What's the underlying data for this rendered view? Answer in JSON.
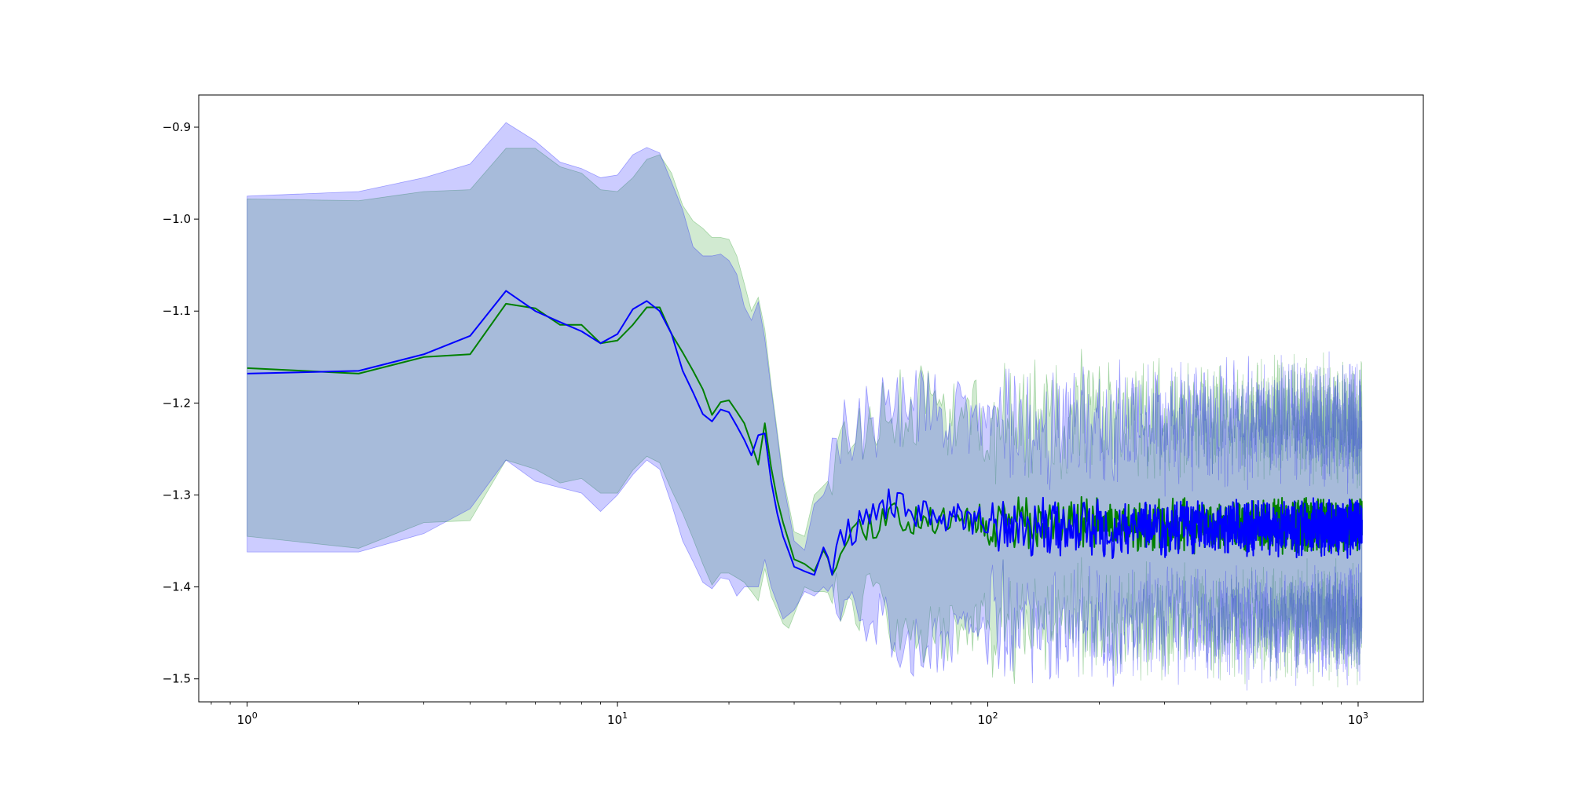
{
  "chart_data": {
    "type": "line",
    "title": "",
    "xlabel": "",
    "ylabel": "",
    "x_scale": "log",
    "xlim": [
      0.74,
      1500
    ],
    "ylim": [
      -1.525,
      -0.865
    ],
    "x_ticks": [
      {
        "value": 1,
        "base": "10",
        "exp": "0"
      },
      {
        "value": 10,
        "base": "10",
        "exp": "1"
      },
      {
        "value": 100,
        "base": "10",
        "exp": "2"
      },
      {
        "value": 1000,
        "base": "10",
        "exp": "3"
      }
    ],
    "y_ticks": [
      {
        "value": -0.9,
        "label": "−0.9"
      },
      {
        "value": -1.0,
        "label": "−1.0"
      },
      {
        "value": -1.1,
        "label": "−1.1"
      },
      {
        "value": -1.2,
        "label": "−1.2"
      },
      {
        "value": -1.3,
        "label": "−1.3"
      },
      {
        "value": -1.4,
        "label": "−1.4"
      },
      {
        "value": -1.5,
        "label": "−1.5"
      }
    ],
    "grid": false,
    "legend": "none",
    "x_max": 1024,
    "series": [
      {
        "color": "#008000",
        "band_color": "#2ca02c",
        "band_opacity": 0.22,
        "mean": [
          [
            1,
            -1.162
          ],
          [
            2,
            -1.168
          ],
          [
            3,
            -1.15
          ],
          [
            4,
            -1.147
          ],
          [
            5,
            -1.092
          ],
          [
            6,
            -1.097
          ],
          [
            7,
            -1.115
          ],
          [
            8,
            -1.115
          ],
          [
            9,
            -1.135
          ],
          [
            10,
            -1.132
          ],
          [
            11,
            -1.115
          ],
          [
            12,
            -1.096
          ],
          [
            13,
            -1.096
          ],
          [
            14,
            -1.125
          ],
          [
            15,
            -1.145
          ],
          [
            17,
            -1.185
          ],
          [
            18,
            -1.213
          ],
          [
            19,
            -1.199
          ],
          [
            20,
            -1.197
          ],
          [
            22,
            -1.222
          ],
          [
            24,
            -1.267
          ],
          [
            25,
            -1.222
          ],
          [
            26,
            -1.27
          ],
          [
            27,
            -1.305
          ],
          [
            28,
            -1.33
          ],
          [
            30,
            -1.37
          ],
          [
            32,
            -1.375
          ],
          [
            34,
            -1.383
          ],
          [
            36,
            -1.36
          ],
          [
            38,
            -1.378
          ],
          [
            40,
            -1.35
          ],
          [
            45,
            -1.335
          ],
          [
            50,
            -1.33
          ],
          [
            55,
            -1.315
          ],
          [
            60,
            -1.33
          ],
          [
            70,
            -1.33
          ],
          [
            80,
            -1.32
          ],
          [
            100,
            -1.33
          ]
        ],
        "upper": [
          [
            1,
            -0.978
          ],
          [
            2,
            -0.98
          ],
          [
            3,
            -0.97
          ],
          [
            4,
            -0.968
          ],
          [
            5,
            -0.923
          ],
          [
            6,
            -0.923
          ],
          [
            7,
            -0.943
          ],
          [
            8,
            -0.95
          ],
          [
            9,
            -0.968
          ],
          [
            10,
            -0.97
          ],
          [
            11,
            -0.955
          ],
          [
            12,
            -0.935
          ],
          [
            13,
            -0.93
          ],
          [
            14,
            -0.95
          ],
          [
            15,
            -0.985
          ],
          [
            16,
            -1.002
          ],
          [
            17,
            -1.01
          ],
          [
            18,
            -1.02
          ],
          [
            19,
            -1.02
          ],
          [
            20,
            -1.022
          ],
          [
            21,
            -1.04
          ],
          [
            22,
            -1.07
          ],
          [
            23,
            -1.1
          ],
          [
            24,
            -1.085
          ],
          [
            25,
            -1.12
          ],
          [
            26,
            -1.18
          ],
          [
            28,
            -1.28
          ],
          [
            30,
            -1.34
          ],
          [
            32,
            -1.345
          ],
          [
            34,
            -1.3
          ],
          [
            36,
            -1.29
          ],
          [
            38,
            -1.28
          ],
          [
            40,
            -1.25
          ],
          [
            45,
            -1.23
          ],
          [
            50,
            -1.22
          ],
          [
            60,
            -1.205
          ],
          [
            70,
            -1.2
          ],
          [
            80,
            -1.215
          ],
          [
            100,
            -1.22
          ]
        ],
        "lower": [
          [
            1,
            -1.345
          ],
          [
            2,
            -1.358
          ],
          [
            3,
            -1.33
          ],
          [
            4,
            -1.328
          ],
          [
            5,
            -1.262
          ],
          [
            6,
            -1.272
          ],
          [
            7,
            -1.287
          ],
          [
            8,
            -1.282
          ],
          [
            9,
            -1.298
          ],
          [
            10,
            -1.298
          ],
          [
            11,
            -1.273
          ],
          [
            12,
            -1.258
          ],
          [
            13,
            -1.265
          ],
          [
            14,
            -1.295
          ],
          [
            15,
            -1.32
          ],
          [
            17,
            -1.375
          ],
          [
            18,
            -1.398
          ],
          [
            19,
            -1.385
          ],
          [
            20,
            -1.385
          ],
          [
            22,
            -1.395
          ],
          [
            24,
            -1.415
          ],
          [
            25,
            -1.38
          ],
          [
            26,
            -1.41
          ],
          [
            28,
            -1.44
          ],
          [
            29,
            -1.445
          ],
          [
            30,
            -1.43
          ],
          [
            32,
            -1.4
          ],
          [
            34,
            -1.405
          ],
          [
            36,
            -1.405
          ],
          [
            40,
            -1.41
          ],
          [
            50,
            -1.42
          ],
          [
            60,
            -1.45
          ],
          [
            80,
            -1.45
          ],
          [
            100,
            -1.44
          ]
        ],
        "tail_mean": -1.333,
        "tail_band": 0.1,
        "tail_noise": 0.022,
        "seed": 11
      },
      {
        "color": "#0000ff",
        "band_color": "#0000ff",
        "band_opacity": 0.2,
        "mean": [
          [
            1,
            -1.168
          ],
          [
            2,
            -1.165
          ],
          [
            3,
            -1.147
          ],
          [
            4,
            -1.127
          ],
          [
            5,
            -1.078
          ],
          [
            6,
            -1.1
          ],
          [
            7,
            -1.112
          ],
          [
            8,
            -1.122
          ],
          [
            9,
            -1.135
          ],
          [
            10,
            -1.125
          ],
          [
            11,
            -1.098
          ],
          [
            12,
            -1.089
          ],
          [
            13,
            -1.1
          ],
          [
            14,
            -1.125
          ],
          [
            15,
            -1.165
          ],
          [
            17,
            -1.212
          ],
          [
            18,
            -1.22
          ],
          [
            19,
            -1.207
          ],
          [
            20,
            -1.21
          ],
          [
            22,
            -1.24
          ],
          [
            23,
            -1.257
          ],
          [
            24,
            -1.235
          ],
          [
            25,
            -1.233
          ],
          [
            26,
            -1.285
          ],
          [
            27,
            -1.32
          ],
          [
            28,
            -1.345
          ],
          [
            30,
            -1.378
          ],
          [
            32,
            -1.383
          ],
          [
            34,
            -1.387
          ],
          [
            36,
            -1.357
          ],
          [
            38,
            -1.378
          ],
          [
            40,
            -1.35
          ],
          [
            45,
            -1.33
          ],
          [
            50,
            -1.325
          ],
          [
            55,
            -1.305
          ],
          [
            60,
            -1.318
          ],
          [
            70,
            -1.325
          ],
          [
            80,
            -1.32
          ],
          [
            100,
            -1.33
          ]
        ],
        "upper": [
          [
            1,
            -0.975
          ],
          [
            2,
            -0.97
          ],
          [
            3,
            -0.955
          ],
          [
            4,
            -0.94
          ],
          [
            5,
            -0.895
          ],
          [
            6,
            -0.915
          ],
          [
            7,
            -0.938
          ],
          [
            8,
            -0.945
          ],
          [
            9,
            -0.955
          ],
          [
            10,
            -0.952
          ],
          [
            11,
            -0.93
          ],
          [
            12,
            -0.922
          ],
          [
            13,
            -0.928
          ],
          [
            14,
            -0.96
          ],
          [
            15,
            -0.99
          ],
          [
            16,
            -1.03
          ],
          [
            17,
            -1.04
          ],
          [
            18,
            -1.04
          ],
          [
            19,
            -1.038
          ],
          [
            20,
            -1.045
          ],
          [
            21,
            -1.06
          ],
          [
            22,
            -1.095
          ],
          [
            23,
            -1.11
          ],
          [
            24,
            -1.09
          ],
          [
            25,
            -1.13
          ],
          [
            26,
            -1.185
          ],
          [
            28,
            -1.285
          ],
          [
            30,
            -1.35
          ],
          [
            32,
            -1.36
          ],
          [
            34,
            -1.31
          ],
          [
            36,
            -1.3
          ],
          [
            38,
            -1.275
          ],
          [
            40,
            -1.24
          ],
          [
            45,
            -1.225
          ],
          [
            50,
            -1.215
          ],
          [
            60,
            -1.205
          ],
          [
            70,
            -1.2
          ],
          [
            80,
            -1.215
          ],
          [
            100,
            -1.22
          ]
        ],
        "lower": [
          [
            1,
            -1.362
          ],
          [
            2,
            -1.362
          ],
          [
            3,
            -1.342
          ],
          [
            4,
            -1.315
          ],
          [
            5,
            -1.262
          ],
          [
            6,
            -1.285
          ],
          [
            7,
            -1.292
          ],
          [
            8,
            -1.298
          ],
          [
            9,
            -1.318
          ],
          [
            10,
            -1.3
          ],
          [
            11,
            -1.278
          ],
          [
            12,
            -1.262
          ],
          [
            13,
            -1.272
          ],
          [
            14,
            -1.31
          ],
          [
            15,
            -1.35
          ],
          [
            17,
            -1.395
          ],
          [
            18,
            -1.402
          ],
          [
            19,
            -1.39
          ],
          [
            20,
            -1.392
          ],
          [
            21,
            -1.41
          ],
          [
            22,
            -1.4
          ],
          [
            24,
            -1.4
          ],
          [
            25,
            -1.37
          ],
          [
            26,
            -1.4
          ],
          [
            28,
            -1.435
          ],
          [
            30,
            -1.425
          ],
          [
            32,
            -1.405
          ],
          [
            34,
            -1.41
          ],
          [
            36,
            -1.4
          ],
          [
            40,
            -1.42
          ],
          [
            50,
            -1.43
          ],
          [
            60,
            -1.47
          ],
          [
            80,
            -1.46
          ],
          [
            100,
            -1.45
          ]
        ],
        "tail_mean": -1.335,
        "tail_band": 0.1,
        "tail_noise": 0.024,
        "seed": 29
      }
    ]
  }
}
